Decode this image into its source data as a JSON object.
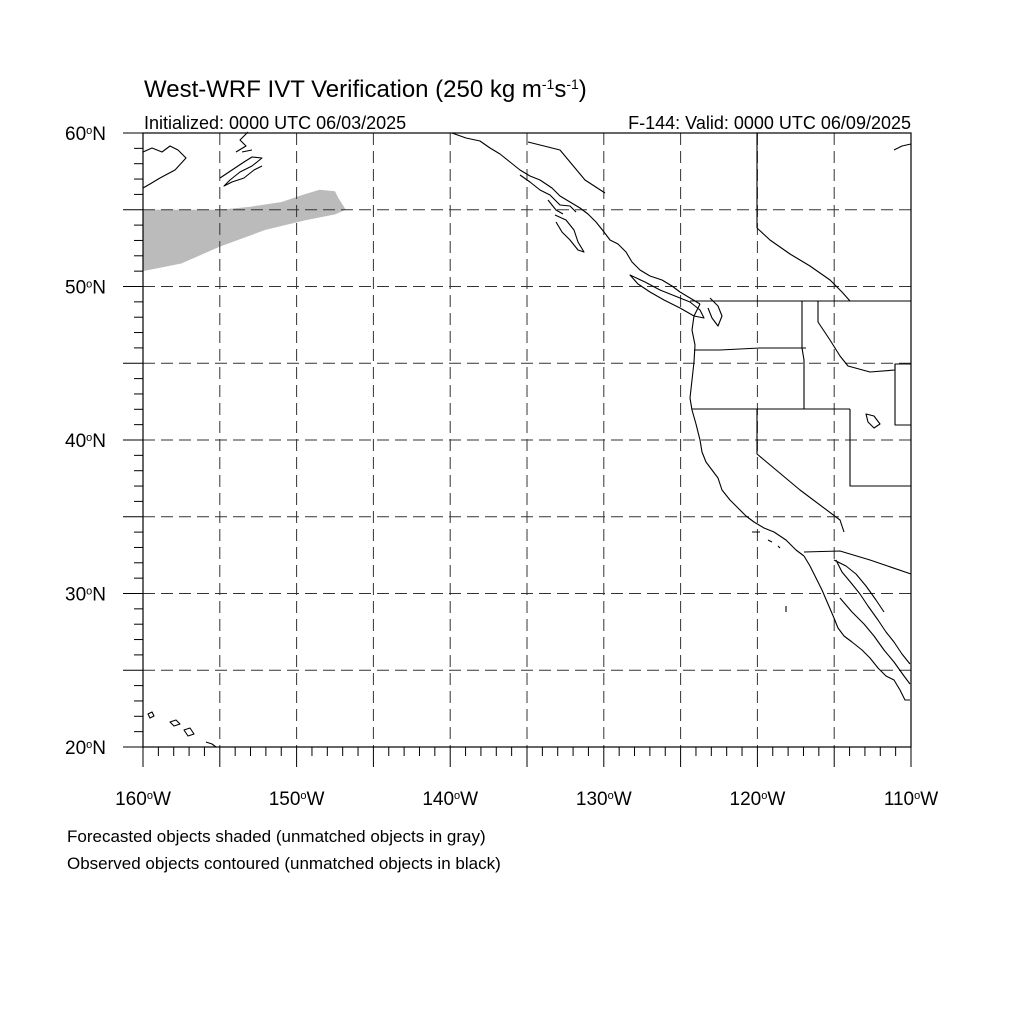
{
  "title": "West-WRF IVT Verification (250 kg m",
  "title_exp1": "-1",
  "title_mid": "s",
  "title_exp2": "-1",
  "title_end": ")",
  "initialized": "Initialized: 0000 UTC 06/03/2025",
  "valid": "F-144: Valid: 0000 UTC 06/09/2025",
  "footnotes": [
    "Forecasted objects shaded (unmatched objects in gray)",
    "Observed objects contoured (unmatched objects in black)"
  ],
  "axes": {
    "lon_range": [
      -160,
      -110
    ],
    "lat_range": [
      20,
      60
    ],
    "lat_labels": [
      {
        "num": "60",
        "suffix": "N"
      },
      {
        "num": "50",
        "suffix": "N"
      },
      {
        "num": "40",
        "suffix": "N"
      },
      {
        "num": "30",
        "suffix": "N"
      },
      {
        "num": "20",
        "suffix": "N"
      }
    ],
    "lon_labels": [
      {
        "num": "160",
        "suffix": "W"
      },
      {
        "num": "150",
        "suffix": "W"
      },
      {
        "num": "140",
        "suffix": "W"
      },
      {
        "num": "130",
        "suffix": "W"
      },
      {
        "num": "120",
        "suffix": "W"
      },
      {
        "num": "110",
        "suffix": "W"
      }
    ],
    "degree_sign": "o",
    "gridline_interval_deg": 5,
    "gridline_style": "dashed"
  },
  "legend": {
    "forecast_unmatched_color": "#bbbbbb",
    "observed_unmatched_color": "#000000"
  },
  "forecast_object": {
    "status": "unmatched",
    "shape_lonlat": [
      [
        -160,
        55.0
      ],
      [
        -155,
        55.0
      ],
      [
        -153,
        55.2
      ],
      [
        -151,
        55.5
      ],
      [
        -149.5,
        56.0
      ],
      [
        -148.5,
        56.3
      ],
      [
        -147.5,
        56.2
      ],
      [
        -147.3,
        55.8
      ],
      [
        -146.8,
        55.0
      ],
      [
        -147.5,
        54.7
      ],
      [
        -149.5,
        54.3
      ],
      [
        -152,
        53.7
      ],
      [
        -155,
        52.6
      ],
      [
        -157.5,
        51.5
      ],
      [
        -160,
        51.0
      ]
    ]
  }
}
